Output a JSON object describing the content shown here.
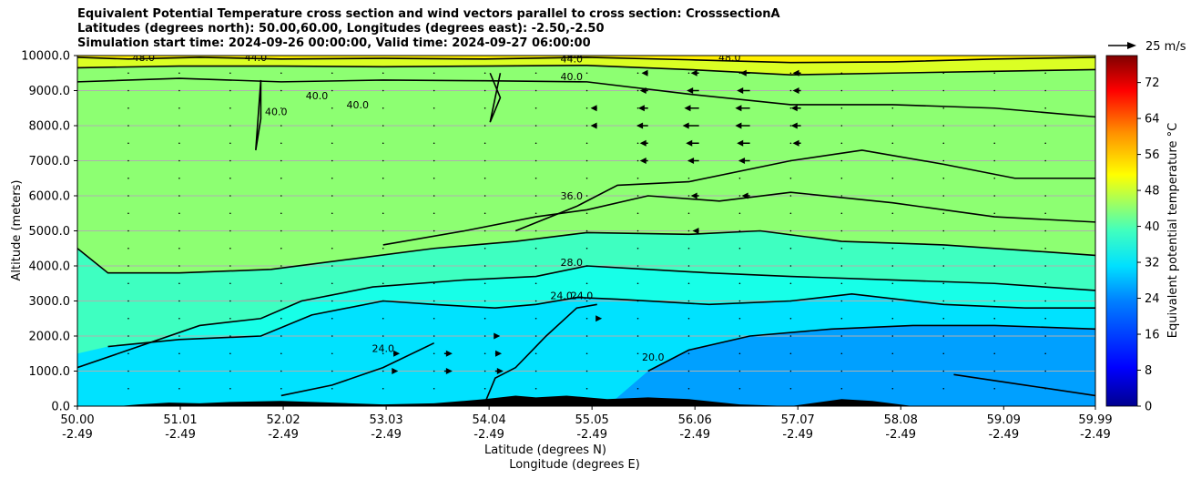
{
  "title": {
    "line1": "Equivalent Potential Temperature cross section and wind vectors parallel to cross section: CrosssectionA",
    "line2": "Latitudes (degrees north): 50.00,60.00, Longitudes (degrees east): -2.50,-2.50",
    "line3": "Simulation start time: 2024-09-26 00:00:00, Valid time: 2024-09-27 06:00:00"
  },
  "chart_data": {
    "type": "heatmap",
    "ylabel": "Altitude (meters)",
    "xlabel_line1": "Latitude (degrees N)",
    "xlabel_line2": "Longitude (degrees E)",
    "ylim": [
      0,
      10000
    ],
    "xlim": [
      50.0,
      59.99
    ],
    "y_ticks": [
      0,
      1000,
      2000,
      3000,
      4000,
      5000,
      6000,
      7000,
      8000,
      9000,
      10000
    ],
    "y_tick_labels": [
      "0.0",
      "1000.0",
      "2000.0",
      "3000.0",
      "4000.0",
      "5000.0",
      "6000.0",
      "7000.0",
      "8000.0",
      "9000.0",
      "10000.0"
    ],
    "x_ticks": [
      50.0,
      51.01,
      52.02,
      53.03,
      54.04,
      55.05,
      56.06,
      57.07,
      58.08,
      59.09,
      59.99
    ],
    "x_tick_labels_lat": [
      "50.00",
      "51.01",
      "52.02",
      "53.03",
      "54.04",
      "55.05",
      "56.06",
      "57.07",
      "58.08",
      "59.09",
      "59.99"
    ],
    "x_tick_labels_lon": [
      "-2.49",
      "-2.49",
      "-2.49",
      "-2.49",
      "-2.49",
      "-2.49",
      "-2.49",
      "-2.49",
      "-2.49",
      "-2.49",
      "-2.49"
    ],
    "grid": "horizontal",
    "colorbar": {
      "label": "Equivalent potential temperature °C",
      "range": [
        0,
        78
      ],
      "ticks": [
        0,
        8,
        16,
        24,
        32,
        40,
        48,
        56,
        64,
        72
      ],
      "colormap": "jet"
    },
    "contour_labels": [
      {
        "text": "48.0",
        "x": 50.65,
        "y": 9850
      },
      {
        "text": "44.0",
        "x": 51.75,
        "y": 9850
      },
      {
        "text": "40.0",
        "x": 52.35,
        "y": 8750
      },
      {
        "text": "40.0",
        "x": 52.75,
        "y": 8500
      },
      {
        "text": "40.0",
        "x": 51.95,
        "y": 8300
      },
      {
        "text": "48.0",
        "x": 54.85,
        "y": 9950
      },
      {
        "text": "44.0",
        "x": 54.85,
        "y": 9800
      },
      {
        "text": "40.0",
        "x": 54.85,
        "y": 9300
      },
      {
        "text": "48.0",
        "x": 56.4,
        "y": 9850
      },
      {
        "text": "36.0",
        "x": 54.85,
        "y": 5900
      },
      {
        "text": "28.0",
        "x": 54.85,
        "y": 4000
      },
      {
        "text": "24.0",
        "x": 54.75,
        "y": 3050
      },
      {
        "text": "24.0",
        "x": 54.95,
        "y": 3050
      },
      {
        "text": "24.0",
        "x": 53.0,
        "y": 1550
      },
      {
        "text": "20.0",
        "x": 55.65,
        "y": 1300
      }
    ],
    "contours": [
      {
        "level": 48,
        "points": [
          [
            50.0,
            9950
          ],
          [
            50.5,
            9900
          ],
          [
            51.2,
            9950
          ],
          [
            52.0,
            9900
          ],
          [
            53.0,
            9920
          ],
          [
            54.0,
            9900
          ],
          [
            55.0,
            9950
          ],
          [
            56.0,
            9880
          ],
          [
            57.0,
            9800
          ],
          [
            58.0,
            9820
          ],
          [
            59.0,
            9900
          ],
          [
            59.99,
            9950
          ]
        ]
      },
      {
        "level": 44,
        "points": [
          [
            50.0,
            9650
          ],
          [
            51.0,
            9700
          ],
          [
            52.0,
            9700
          ],
          [
            53.0,
            9680
          ],
          [
            54.0,
            9700
          ],
          [
            55.0,
            9720
          ],
          [
            56.0,
            9600
          ],
          [
            57.0,
            9450
          ],
          [
            58.0,
            9500
          ],
          [
            59.0,
            9550
          ],
          [
            59.99,
            9600
          ]
        ]
      },
      {
        "level": 40,
        "points": [
          [
            50.0,
            9250
          ],
          [
            51.0,
            9350
          ],
          [
            52.0,
            9250
          ],
          [
            53.0,
            9300
          ],
          [
            54.0,
            9280
          ],
          [
            55.0,
            9250
          ],
          [
            56.0,
            8900
          ],
          [
            57.0,
            8600
          ],
          [
            58.0,
            8600
          ],
          [
            59.0,
            8500
          ],
          [
            59.99,
            8250
          ]
        ]
      },
      {
        "level": 40,
        "points": [
          [
            51.75,
            7300
          ],
          [
            51.8,
            8200
          ],
          [
            51.8,
            9300
          ],
          [
            51.75,
            7300
          ]
        ]
      },
      {
        "level": 40,
        "points": [
          [
            54.05,
            9500
          ],
          [
            54.15,
            8800
          ],
          [
            54.05,
            8100
          ],
          [
            54.15,
            9500
          ]
        ]
      },
      {
        "level": 36,
        "points": [
          [
            54.3,
            5000
          ],
          [
            54.9,
            5700
          ],
          [
            55.3,
            6300
          ],
          [
            56.0,
            6400
          ],
          [
            57.0,
            7000
          ],
          [
            57.7,
            7300
          ],
          [
            58.5,
            6900
          ],
          [
            59.2,
            6500
          ],
          [
            59.99,
            6500
          ]
        ]
      },
      {
        "level": 36,
        "points": [
          [
            53.0,
            4600
          ],
          [
            53.8,
            5000
          ],
          [
            54.5,
            5400
          ],
          [
            55.0,
            5600
          ],
          [
            55.6,
            6000
          ],
          [
            56.3,
            5850
          ],
          [
            57.0,
            6100
          ],
          [
            58.0,
            5800
          ],
          [
            59.0,
            5400
          ],
          [
            59.99,
            5250
          ]
        ]
      },
      {
        "level": 32,
        "points": [
          [
            50.0,
            4500
          ],
          [
            50.3,
            3800
          ],
          [
            51.0,
            3800
          ],
          [
            51.9,
            3900
          ],
          [
            52.7,
            4200
          ],
          [
            53.5,
            4500
          ],
          [
            54.3,
            4700
          ],
          [
            55.0,
            4950
          ],
          [
            56.0,
            4900
          ],
          [
            56.7,
            5000
          ],
          [
            57.5,
            4700
          ],
          [
            58.5,
            4600
          ],
          [
            59.5,
            4400
          ],
          [
            59.99,
            4300
          ]
        ]
      },
      {
        "level": 28,
        "points": [
          [
            50.0,
            1100
          ],
          [
            50.5,
            1600
          ],
          [
            51.2,
            2300
          ],
          [
            51.8,
            2500
          ],
          [
            52.2,
            3000
          ],
          [
            52.9,
            3400
          ],
          [
            53.8,
            3600
          ],
          [
            54.5,
            3700
          ],
          [
            55.0,
            4000
          ],
          [
            55.6,
            3900
          ],
          [
            56.2,
            3800
          ],
          [
            57.0,
            3700
          ],
          [
            58.0,
            3600
          ],
          [
            59.0,
            3500
          ],
          [
            59.99,
            3300
          ]
        ]
      },
      {
        "level": 24,
        "points": [
          [
            50.3,
            1700
          ],
          [
            51.0,
            1900
          ],
          [
            51.8,
            2000
          ],
          [
            52.3,
            2600
          ],
          [
            53.0,
            3000
          ],
          [
            53.5,
            2900
          ],
          [
            54.1,
            2800
          ],
          [
            54.5,
            2900
          ],
          [
            54.9,
            3100
          ],
          [
            55.3,
            3050
          ],
          [
            56.2,
            2900
          ],
          [
            57.0,
            3000
          ],
          [
            57.6,
            3200
          ],
          [
            58.5,
            2900
          ],
          [
            59.3,
            2800
          ],
          [
            59.99,
            2800
          ]
        ]
      },
      {
        "level": 24,
        "points": [
          [
            52.0,
            300
          ],
          [
            52.5,
            600
          ],
          [
            53.0,
            1100
          ],
          [
            53.5,
            1800
          ]
        ]
      },
      {
        "level": 24,
        "points": [
          [
            54.0,
            100
          ],
          [
            54.1,
            800
          ],
          [
            54.3,
            1100
          ],
          [
            54.6,
            2000
          ],
          [
            54.9,
            2800
          ],
          [
            55.1,
            2900
          ]
        ]
      },
      {
        "level": 20,
        "points": [
          [
            55.6,
            1000
          ],
          [
            56.0,
            1600
          ],
          [
            56.6,
            2000
          ],
          [
            57.4,
            2200
          ],
          [
            58.2,
            2300
          ],
          [
            59.0,
            2300
          ],
          [
            59.99,
            2200
          ]
        ]
      },
      {
        "level": 20,
        "points": [
          [
            58.6,
            900
          ],
          [
            59.3,
            600
          ],
          [
            59.99,
            300
          ]
        ]
      }
    ],
    "terrain": [
      [
        50.0,
        0
      ],
      [
        50.4,
        0
      ],
      [
        50.6,
        50
      ],
      [
        50.9,
        100
      ],
      [
        51.2,
        80
      ],
      [
        51.5,
        120
      ],
      [
        52.0,
        150
      ],
      [
        52.5,
        100
      ],
      [
        53.0,
        50
      ],
      [
        53.5,
        80
      ],
      [
        54.0,
        200
      ],
      [
        54.3,
        300
      ],
      [
        54.5,
        250
      ],
      [
        54.8,
        300
      ],
      [
        55.2,
        200
      ],
      [
        55.6,
        250
      ],
      [
        56.0,
        200
      ],
      [
        56.5,
        50
      ],
      [
        57.0,
        0
      ],
      [
        57.5,
        200
      ],
      [
        57.8,
        150
      ],
      [
        58.2,
        0
      ],
      [
        59.99,
        0
      ]
    ],
    "wind_reference": {
      "label": "25 m/s",
      "speed": 25
    },
    "wind_vectors": [
      {
        "x": 55.6,
        "y": 9500,
        "u": -8
      },
      {
        "x": 56.1,
        "y": 9500,
        "u": -10
      },
      {
        "x": 56.6,
        "y": 9500,
        "u": -12
      },
      {
        "x": 57.1,
        "y": 9500,
        "u": -10
      },
      {
        "x": 55.6,
        "y": 9000,
        "u": -10
      },
      {
        "x": 56.1,
        "y": 9000,
        "u": -15
      },
      {
        "x": 56.6,
        "y": 9000,
        "u": -16
      },
      {
        "x": 57.1,
        "y": 9000,
        "u": -10
      },
      {
        "x": 55.1,
        "y": 8500,
        "u": -8
      },
      {
        "x": 55.6,
        "y": 8500,
        "u": -12
      },
      {
        "x": 56.1,
        "y": 8500,
        "u": -18
      },
      {
        "x": 56.6,
        "y": 8500,
        "u": -18
      },
      {
        "x": 57.1,
        "y": 8500,
        "u": -12
      },
      {
        "x": 55.1,
        "y": 8000,
        "u": -8
      },
      {
        "x": 55.6,
        "y": 8000,
        "u": -14
      },
      {
        "x": 56.1,
        "y": 8000,
        "u": -20
      },
      {
        "x": 56.6,
        "y": 8000,
        "u": -18
      },
      {
        "x": 57.1,
        "y": 8000,
        "u": -12
      },
      {
        "x": 55.6,
        "y": 7500,
        "u": -10
      },
      {
        "x": 56.1,
        "y": 7500,
        "u": -16
      },
      {
        "x": 56.6,
        "y": 7500,
        "u": -16
      },
      {
        "x": 57.1,
        "y": 7500,
        "u": -10
      },
      {
        "x": 55.6,
        "y": 7000,
        "u": -10
      },
      {
        "x": 56.1,
        "y": 7000,
        "u": -14
      },
      {
        "x": 56.6,
        "y": 7000,
        "u": -14
      },
      {
        "x": 56.1,
        "y": 6000,
        "u": -10
      },
      {
        "x": 56.6,
        "y": 6000,
        "u": -10
      },
      {
        "x": 56.1,
        "y": 5000,
        "u": -8
      },
      {
        "x": 53.1,
        "y": 1500,
        "u": 8
      },
      {
        "x": 53.6,
        "y": 1500,
        "u": 10
      },
      {
        "x": 54.1,
        "y": 1500,
        "u": 8
      },
      {
        "x": 53.6,
        "y": 1000,
        "u": 10
      },
      {
        "x": 54.1,
        "y": 1000,
        "u": 10
      },
      {
        "x": 53.1,
        "y": 1000,
        "u": 6
      },
      {
        "x": 55.1,
        "y": 2500,
        "u": 6
      },
      {
        "x": 54.1,
        "y": 2000,
        "u": 6
      }
    ]
  }
}
